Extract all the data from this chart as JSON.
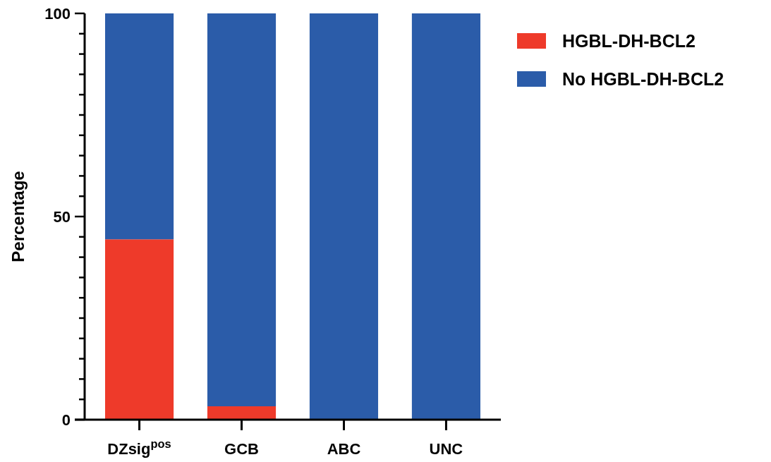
{
  "chart_data": {
    "type": "bar",
    "stacked": true,
    "ylabel": "Percentage",
    "categories": [
      "DZsig$^{pos}$",
      "GCB",
      "ABC",
      "UNC"
    ],
    "series": [
      {
        "name": "HGBL-DH-BCL2",
        "color": "#ee3a2a",
        "values": [
          44.4,
          3.3,
          0,
          0
        ]
      },
      {
        "name": "No HGBL-DH-BCL2",
        "color": "#2b5ca9",
        "values": [
          55.6,
          96.7,
          100,
          100
        ]
      }
    ],
    "ylim": [
      0,
      100
    ],
    "yticks": [
      0,
      {
        "value": 5,
        "label": null
      },
      {
        "value": 10,
        "label": null
      },
      {
        "value": 15,
        "label": null
      },
      {
        "value": 20,
        "label": null
      },
      {
        "value": 25,
        "label": null
      },
      {
        "value": 30,
        "label": null
      },
      {
        "value": 35,
        "label": null
      },
      {
        "value": 40,
        "label": null
      },
      {
        "value": 45,
        "label": null
      },
      50,
      {
        "value": 55,
        "label": null
      },
      {
        "value": 60,
        "label": null
      },
      {
        "value": 65,
        "label": null
      },
      {
        "value": 70,
        "label": null
      },
      {
        "value": 75,
        "label": null
      },
      {
        "value": 80,
        "label": null
      },
      {
        "value": 85,
        "label": null
      },
      {
        "value": 90,
        "label": null
      },
      {
        "value": 95,
        "label": null
      },
      100
    ],
    "grid": false,
    "legend": "top right"
  }
}
